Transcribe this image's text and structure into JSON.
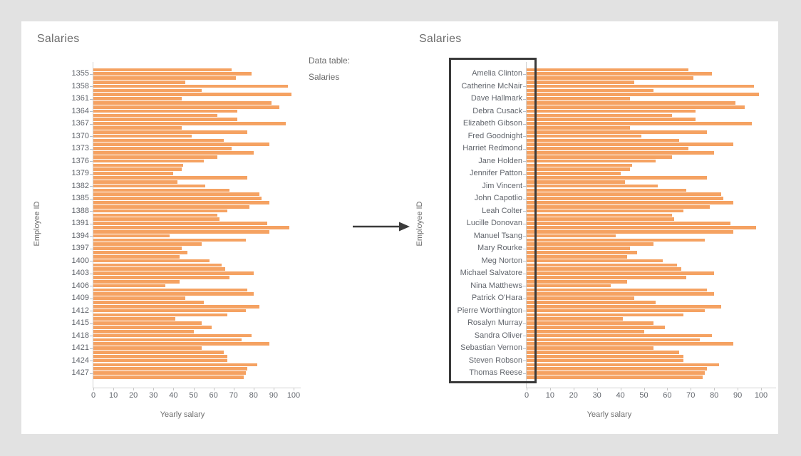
{
  "left_chart": {
    "title": "Salaries",
    "y_axis_title": "Employee ID",
    "x_axis_title": "Yearly salary"
  },
  "right_chart": {
    "title": "Salaries",
    "y_axis_title": "Employee ID",
    "x_axis_title": "Yearly salary"
  },
  "annotation": {
    "line1": "Data table:",
    "line2": "Salaries"
  },
  "chart_data": {
    "type": "bar",
    "orientation": "horizontal",
    "title": "Salaries",
    "xlabel": "Yearly salary",
    "ylabel": "Employee ID",
    "xlim": [
      0,
      100
    ],
    "x_tick_labels": [
      "0",
      "10",
      "20",
      "30",
      "40",
      "50",
      "60",
      "70",
      "80",
      "90",
      "100"
    ],
    "bar_color": "#f5a262",
    "values": [
      69,
      79,
      71,
      46,
      97,
      54,
      99,
      44,
      89,
      93,
      72,
      62,
      72,
      96,
      44,
      77,
      49,
      65,
      88,
      69,
      80,
      62,
      55,
      45,
      44,
      40,
      77,
      42,
      56,
      68,
      83,
      84,
      88,
      78,
      67,
      62,
      63,
      87,
      98,
      88,
      38,
      76,
      54,
      44,
      47,
      43,
      58,
      64,
      66,
      80,
      68,
      43,
      36,
      77,
      80,
      46,
      55,
      83,
      76,
      67,
      41,
      54,
      59,
      50,
      79,
      74,
      88,
      54,
      65,
      67,
      67,
      82,
      77,
      76,
      75
    ],
    "label_every": 3,
    "label_offset": 1,
    "charts": [
      {
        "name": "by-employee-id",
        "title": "Salaries",
        "y_tick_labels": [
          "1355",
          "1358",
          "1361",
          "1364",
          "1367",
          "1370",
          "1373",
          "1376",
          "1379",
          "1382",
          "1385",
          "1388",
          "1391",
          "1394",
          "1397",
          "1400",
          "1403",
          "1406",
          "1409",
          "1412",
          "1415",
          "1418",
          "1421",
          "1424",
          "1427"
        ]
      },
      {
        "name": "by-employee-name",
        "title": "Salaries",
        "y_tick_labels": [
          "Amelia Clinton",
          "Catherine McNair",
          "Dave Hallmark",
          "Debra Cusack",
          "Elizabeth Gibson",
          "Fred Goodnight",
          "Harriet Redmond",
          "Jane Holden",
          "Jennifer Patton",
          "Jim Vincent",
          "John Capotlio",
          "Leah Colter",
          "Lucille Donovan",
          "Manuel Tsang",
          "Mary Rourke",
          "Meg Norton",
          "Michael Salvatore",
          "Nina Matthews",
          "Patrick O'Hara",
          "Pierre Worthington",
          "Rosalyn Murray",
          "Sandra Oliver",
          "Sebastian Vernon",
          "Steven Robson",
          "Thomas Reese"
        ]
      }
    ],
    "selection_note": "name labels of right chart are outlined with a dark selection rectangle"
  }
}
